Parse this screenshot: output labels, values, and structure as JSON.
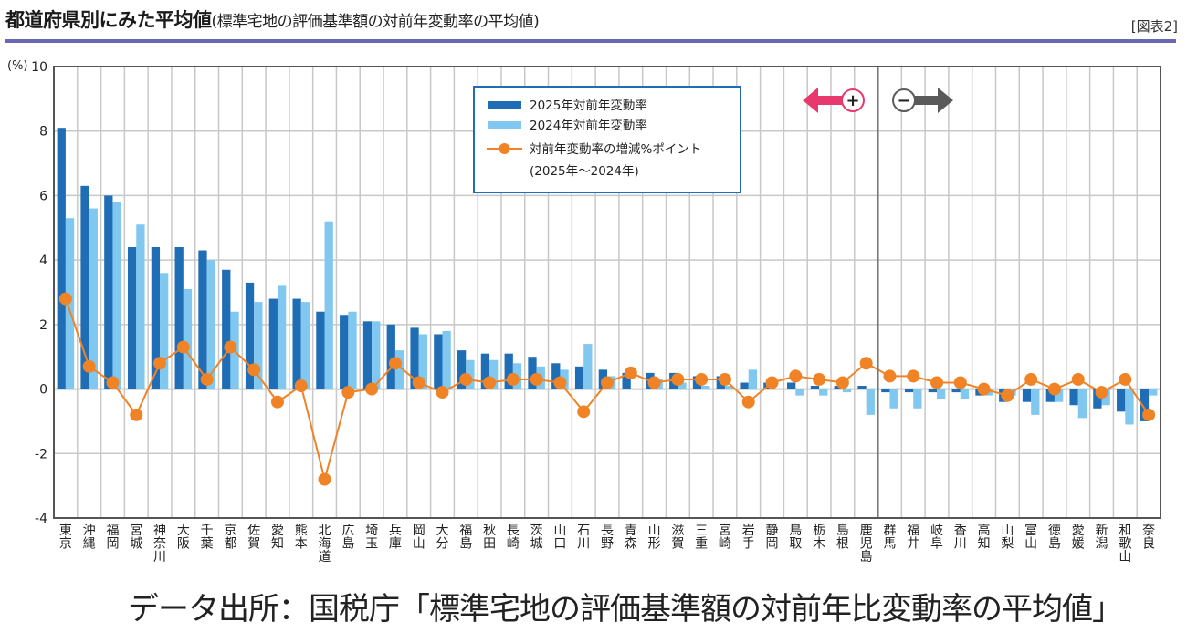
{
  "header": {
    "title": "都道府県別にみた平均値",
    "subtitle": "(標準宅地の評価基準額の対前年変動率の平均値)",
    "figure_label": "[図表2]"
  },
  "footer": {
    "source": "データ出所：国税庁「標準宅地の評価基準額の対前年比変動率の平均値」"
  },
  "colors": {
    "bar_2025": "#1f6db5",
    "bar_2024": "#80c8ef",
    "line_diff": "#f08325",
    "plus_arrow": "#e8396f",
    "minus_arrow": "#5a5a5a",
    "grid": "#c8c8c8",
    "legend_border": "#1f6db5",
    "title_rule": "#6a68b3"
  },
  "chart_data": {
    "type": "bar",
    "title": "都道府県別にみた平均値",
    "xlabel": "",
    "ylabel": "(%)",
    "ylim": [
      -4,
      10
    ],
    "yticks": [
      "10",
      "8",
      "6",
      "4",
      "2",
      "0",
      "-2",
      "-4"
    ],
    "ytick_values": [
      10,
      8,
      6,
      4,
      2,
      0,
      -2,
      -4
    ],
    "grid": true,
    "legend_position": "top-center",
    "legend": [
      "2025年対前年変動率",
      "2024年対前年変動率",
      "対前年変動率の増減%ポイント",
      "(2025年～2024年)"
    ],
    "annotations": {
      "plus_sign": "+",
      "minus_sign": "−",
      "divider_after_category": "鹿児島"
    },
    "categories": [
      "東京",
      "沖縄",
      "福岡",
      "宮城",
      "神奈川",
      "大阪",
      "千葉",
      "京都",
      "佐賀",
      "愛知",
      "熊本",
      "北海道",
      "広島",
      "埼玉",
      "兵庫",
      "岡山",
      "大分",
      "福島",
      "秋田",
      "長崎",
      "茨城",
      "山口",
      "石川",
      "長野",
      "青森",
      "山形",
      "滋賀",
      "三重",
      "宮崎",
      "岩手",
      "静岡",
      "鳥取",
      "栃木",
      "島根",
      "鹿児島",
      "群馬",
      "福井",
      "岐阜",
      "香川",
      "高知",
      "山梨",
      "富山",
      "徳島",
      "愛媛",
      "新潟",
      "和歌山",
      "奈良"
    ],
    "series": [
      {
        "name": "2025年対前年変動率",
        "type": "bar",
        "values": [
          8.1,
          6.3,
          6.0,
          4.4,
          4.4,
          4.4,
          4.3,
          3.7,
          3.3,
          2.8,
          2.8,
          2.4,
          2.3,
          2.1,
          2.0,
          1.9,
          1.7,
          1.2,
          1.1,
          1.1,
          1.0,
          0.8,
          0.7,
          0.6,
          0.5,
          0.5,
          0.5,
          0.4,
          0.4,
          0.2,
          0.2,
          0.2,
          0.1,
          0.1,
          0.1,
          -0.1,
          -0.1,
          -0.1,
          -0.1,
          -0.2,
          -0.4,
          -0.4,
          -0.4,
          -0.5,
          -0.6,
          -0.7,
          -1.0
        ]
      },
      {
        "name": "2024年対前年変動率",
        "type": "bar",
        "values": [
          5.3,
          5.6,
          5.8,
          5.1,
          3.6,
          3.1,
          4.0,
          2.4,
          2.7,
          3.2,
          2.7,
          5.2,
          2.4,
          2.1,
          1.2,
          1.7,
          1.8,
          0.9,
          0.9,
          0.8,
          0.7,
          0.6,
          1.4,
          0.4,
          0.0,
          0.3,
          0.2,
          0.1,
          0.1,
          0.6,
          0.0,
          -0.2,
          -0.2,
          -0.1,
          -0.8,
          -0.6,
          -0.6,
          -0.3,
          -0.3,
          -0.2,
          -0.2,
          -0.8,
          -0.4,
          -0.9,
          -0.5,
          -1.1,
          -0.2
        ]
      },
      {
        "name": "対前年変動率の増減%ポイント(2025年～2024年)",
        "type": "line",
        "values": [
          2.8,
          0.7,
          0.2,
          -0.8,
          0.8,
          1.3,
          0.3,
          1.3,
          0.6,
          -0.4,
          0.1,
          -2.8,
          -0.1,
          0.0,
          0.8,
          0.2,
          -0.1,
          0.3,
          0.2,
          0.3,
          0.3,
          0.2,
          -0.7,
          0.2,
          0.5,
          0.2,
          0.3,
          0.3,
          0.3,
          -0.4,
          0.2,
          0.4,
          0.3,
          0.2,
          0.8,
          0.4,
          0.4,
          0.2,
          0.2,
          0.0,
          -0.2,
          0.3,
          0.0,
          0.3,
          -0.1,
          0.3,
          -0.8
        ]
      }
    ]
  }
}
